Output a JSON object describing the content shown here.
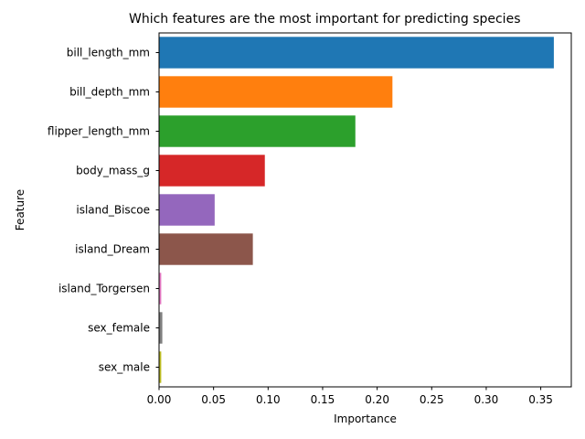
{
  "chart_data": {
    "type": "bar",
    "orientation": "horizontal",
    "title": "Which features are the most important for predicting species",
    "xlabel": "Importance",
    "ylabel": "Feature",
    "categories": [
      "bill_length_mm",
      "bill_depth_mm",
      "flipper_length_mm",
      "body_mass_g",
      "island_Biscoe",
      "island_Dream",
      "island_Torgersen",
      "sex_female",
      "sex_male"
    ],
    "values": [
      0.362,
      0.214,
      0.18,
      0.097,
      0.051,
      0.086,
      0.002,
      0.003,
      0.002
    ],
    "colors": [
      "#1f77b4",
      "#ff7f0e",
      "#2ca02c",
      "#d62728",
      "#9467bd",
      "#8c564b",
      "#e377c2",
      "#7f7f7f",
      "#bcbd22"
    ],
    "xlim": [
      0,
      0.378
    ],
    "xticks": [
      "0.00",
      "0.05",
      "0.10",
      "0.15",
      "0.20",
      "0.25",
      "0.30",
      "0.35"
    ],
    "grid": false,
    "legend": "none"
  }
}
